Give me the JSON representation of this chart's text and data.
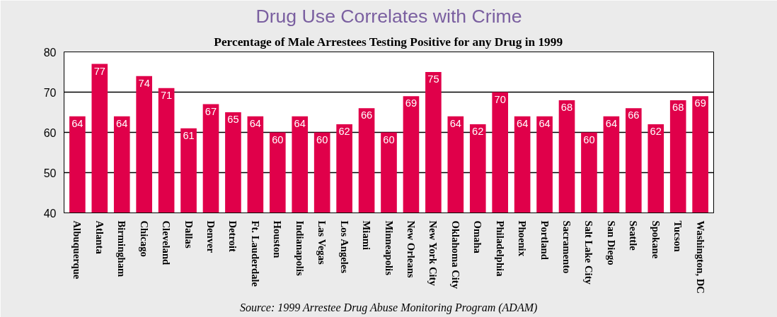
{
  "chart_data": {
    "type": "bar",
    "title": "Drug Use Correlates with Crime",
    "subtitle": "Percentage of Male Arrestees Testing Positive for any Drug in 1999",
    "categories": [
      "Albuquerque",
      "Atlanta",
      "Birmingham",
      "Chicago",
      "Cleveland",
      "Dallas",
      "Denver",
      "Detroit",
      "Ft. Lauderdale",
      "Houston",
      "Indianapolis",
      "Las Vegas",
      "Los Angeles",
      "Miami",
      "Minneapolis",
      "New Orleans",
      "New York City",
      "Oklahoma City",
      "Omaha",
      "Philadelphia",
      "Phoenix",
      "Portland",
      "Sacramento",
      "Salt Lake City",
      "San Diego",
      "Seattle",
      "Spokane",
      "Tucson",
      "Washington, DC"
    ],
    "values": [
      64,
      77,
      64,
      74,
      71,
      61,
      67,
      65,
      64,
      60,
      64,
      60,
      62,
      66,
      60,
      69,
      75,
      64,
      62,
      70,
      64,
      64,
      68,
      60,
      64,
      66,
      62,
      68,
      69
    ],
    "color": "#e0004a",
    "ylim": [
      40,
      80
    ],
    "yticks": [
      40,
      50,
      60,
      70,
      80
    ],
    "grid": "y",
    "data_labels": true,
    "annotations": [
      "Source: 1999 Arrestee Drug Abuse Monitoring Program (ADAM)"
    ]
  }
}
